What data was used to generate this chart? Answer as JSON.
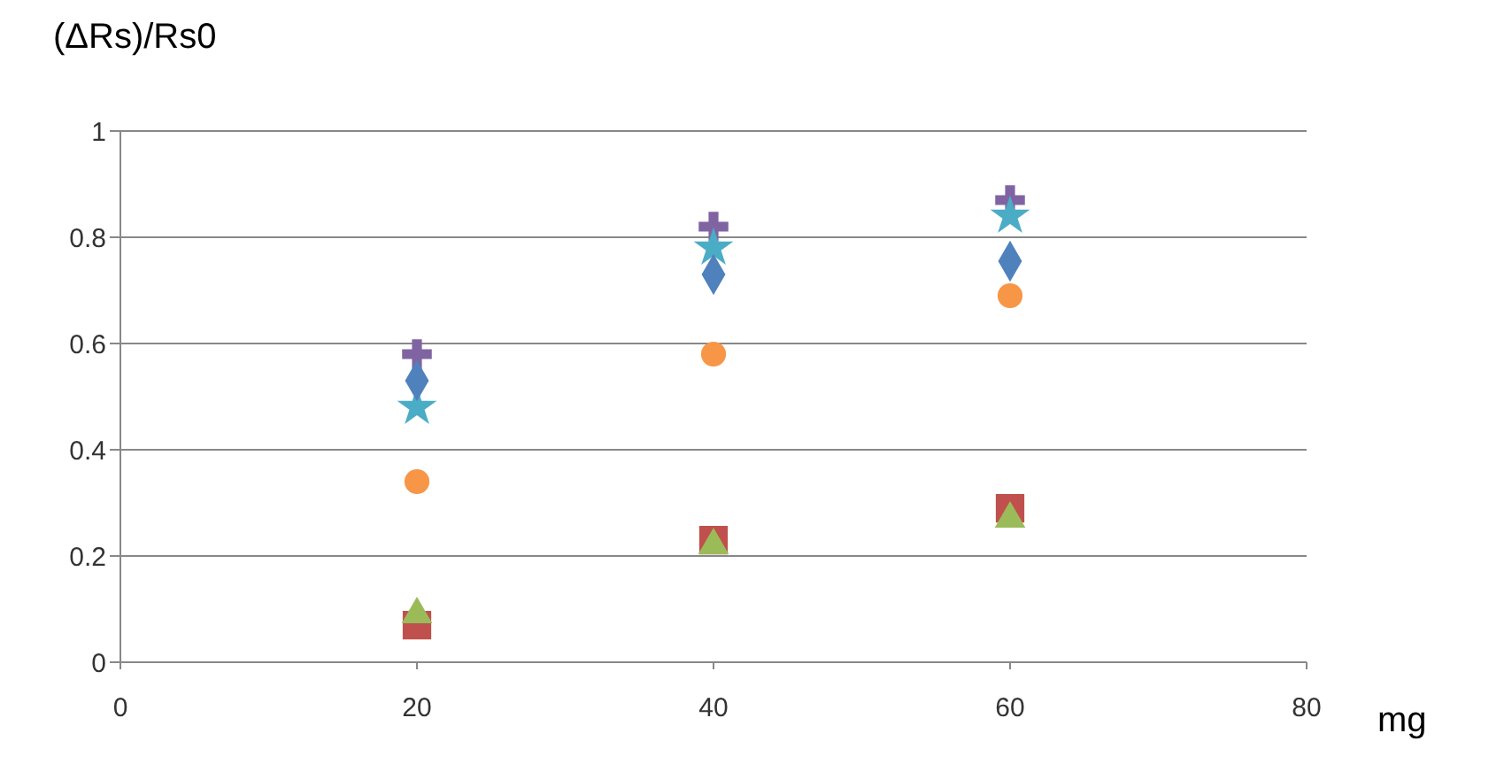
{
  "chart_data": {
    "type": "scatter",
    "ylabel": "(ΔRs)/Rs0",
    "xlabel": "mg",
    "x": [
      20,
      40,
      60
    ],
    "xlim": [
      0,
      80
    ],
    "xticks": [
      0,
      20,
      40,
      60,
      80
    ],
    "ylim": [
      0,
      1
    ],
    "yticks": [
      0,
      0.2,
      0.4,
      0.6,
      0.8,
      1
    ],
    "grid": "y",
    "series": [
      {
        "color": "#8064a2",
        "marker": "cross",
        "values": [
          0.58,
          0.82,
          0.87
        ]
      },
      {
        "color": "#4bacc6",
        "marker": "star",
        "values": [
          0.48,
          0.78,
          0.84
        ]
      },
      {
        "color": "#4f81bd",
        "marker": "diamond",
        "values": [
          0.53,
          0.73,
          0.755
        ]
      },
      {
        "color": "#f79646",
        "marker": "circle",
        "values": [
          0.34,
          0.58,
          0.69
        ]
      },
      {
        "color": "#c0504d",
        "marker": "square",
        "values": [
          0.07,
          0.23,
          0.29
        ]
      },
      {
        "color": "#9bbb59",
        "marker": "triangle",
        "values": [
          0.09,
          0.22,
          0.27
        ]
      }
    ]
  }
}
